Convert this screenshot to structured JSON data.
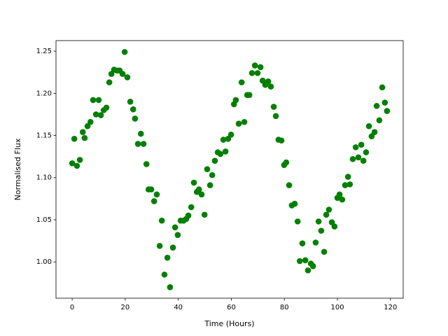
{
  "chart_data": {
    "type": "scatter",
    "xlabel": "Time (Hours)",
    "ylabel": "Normalised Flux",
    "color": "#008000",
    "xlim": [
      -6.1,
      124.8
    ],
    "ylim": [
      0.957,
      1.2625
    ],
    "xticks": [
      0,
      20,
      40,
      60,
      80,
      100,
      120
    ],
    "yticks": [
      {
        "value": 1.0,
        "label": "1.00"
      },
      {
        "value": 1.05,
        "label": "1.05"
      },
      {
        "value": 1.1,
        "label": "1.10"
      },
      {
        "value": 1.15,
        "label": "1.15"
      },
      {
        "value": 1.2,
        "label": "1.20"
      },
      {
        "value": 1.25,
        "label": "1.25"
      }
    ],
    "x": [
      0,
      0.8,
      1.8,
      2.9,
      4,
      4.7,
      5.8,
      6.9,
      7.9,
      9,
      10,
      10.8,
      11.9,
      12.9,
      14,
      14.8,
      15.8,
      16.9,
      17.9,
      19,
      19.8,
      20.8,
      21.9,
      23,
      23.7,
      24.8,
      25.9,
      26.9,
      28,
      28.8,
      29.8,
      30.9,
      31.9,
      33,
      33.8,
      34.8,
      35.9,
      36.9,
      38,
      38.8,
      39.8,
      40.9,
      42,
      43,
      43.8,
      44.9,
      45.9,
      47,
      47.8,
      48.8,
      49.9,
      50.9,
      52,
      52.8,
      53.8,
      54.9,
      55.9,
      57,
      57.8,
      58.8,
      59.9,
      61,
      61.7,
      62.8,
      63.9,
      64.9,
      66,
      66.8,
      67.8,
      68.9,
      69.9,
      71,
      71.8,
      72.8,
      73.9,
      74.9,
      76,
      76.8,
      77.8,
      78.9,
      79.9,
      80.7,
      81.8,
      82.8,
      83.9,
      85,
      85.8,
      86.8,
      87.9,
      88.9,
      90,
      90.8,
      91.8,
      92.9,
      93.9,
      95,
      95.8,
      96.8,
      97.9,
      98.9,
      100,
      100.8,
      101.8,
      102.9,
      104,
      104.7,
      105.8,
      106.9,
      107.9,
      109,
      109.8,
      110.8,
      111.9,
      112.9,
      114,
      114.8,
      115.8,
      116.9,
      117.9,
      118.7
    ],
    "values": [
      1.117,
      1.146,
      1.114,
      1.121,
      1.154,
      1.147,
      1.161,
      1.166,
      1.192,
      1.175,
      1.192,
      1.174,
      1.18,
      1.183,
      1.213,
      1.223,
      1.228,
      1.227,
      1.227,
      1.223,
      1.249,
      1.219,
      1.19,
      1.181,
      1.17,
      1.14,
      1.152,
      1.14,
      1.116,
      1.086,
      1.086,
      1.072,
      1.08,
      1.019,
      1.049,
      0.985,
      1.005,
      0.97,
      1.017,
      1.041,
      1.032,
      1.049,
      1.049,
      1.051,
      1.055,
      1.065,
      1.094,
      1.083,
      1.086,
      1.08,
      1.056,
      1.11,
      1.091,
      1.103,
      1.12,
      1.13,
      1.128,
      1.145,
      1.131,
      1.146,
      1.151,
      1.187,
      1.192,
      1.164,
      1.213,
      1.166,
      1.198,
      1.198,
      1.224,
      1.233,
      1.224,
      1.231,
      1.215,
      1.21,
      1.214,
      1.208,
      1.184,
      1.173,
      1.145,
      1.144,
      1.115,
      1.118,
      1.091,
      1.067,
      1.069,
      1.048,
      1.001,
      1.022,
      1.002,
      0.99,
      0.998,
      0.995,
      1.023,
      1.048,
      1.037,
      1.012,
      1.056,
      1.062,
      1.047,
      1.042,
      1.076,
      1.08,
      1.074,
      1.091,
      1.101,
      1.092,
      1.122,
      1.136,
      1.124,
      1.139,
      1.12,
      1.13,
      1.161,
      1.149,
      1.154,
      1.185,
      1.168,
      1.207,
      1.189,
      1.179
    ]
  }
}
